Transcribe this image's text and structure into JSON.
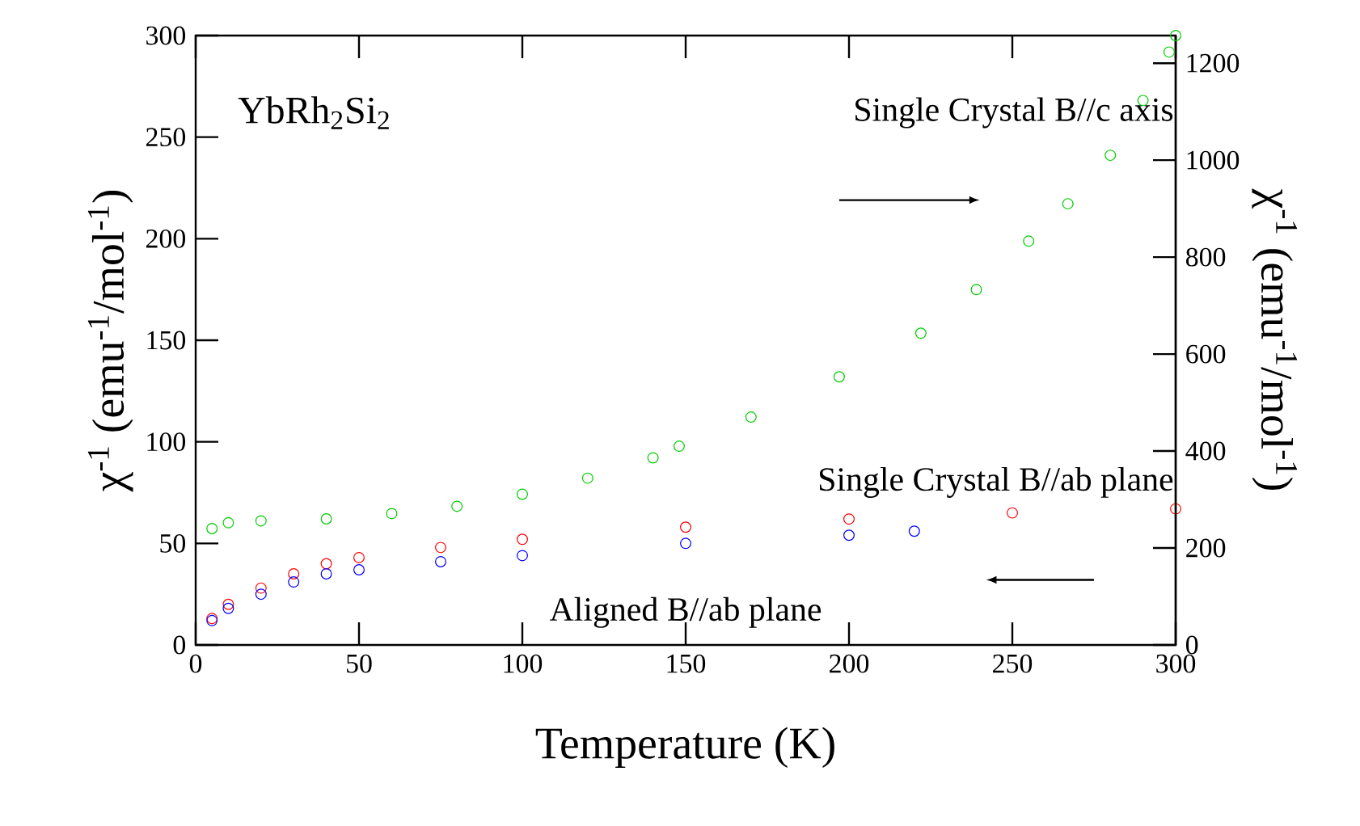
{
  "chart_data": {
    "type": "scatter",
    "marker": "circle",
    "xlabel": "Temperature (K)",
    "ylabel": "χ$^{-1}$ (emu$^{-1}$/mol$^{-1}$)",
    "y2label": "χ$^{-1}$ (emu$^{-1}$/mol$^{-1}$)",
    "xlim": [
      0,
      300
    ],
    "xticks": [
      0,
      50,
      100,
      150,
      200,
      250,
      300
    ],
    "ylim": [
      0,
      300
    ],
    "yticks": [
      0,
      50,
      100,
      150,
      200,
      250,
      300
    ],
    "y2lim": [
      0,
      1257
    ],
    "y2ticks": [
      0,
      200,
      400,
      600,
      800,
      1000,
      1200
    ],
    "annotations": [
      "YbRh$_{2}$Si$_{2}$"
    ],
    "series": [
      {
        "name": "Single Crystal  B//c axis",
        "color": "#00cc00",
        "axis": "y2",
        "x": [
          5,
          10,
          20,
          40,
          60,
          80,
          100,
          120,
          140,
          148,
          170,
          197,
          222,
          239,
          255,
          267,
          280,
          290,
          298,
          300
        ],
        "values": [
          240,
          252,
          256,
          260,
          271,
          286,
          311,
          344,
          386,
          410,
          470,
          553,
          643,
          733,
          833,
          910,
          1010,
          1123,
          1223,
          1257
        ]
      },
      {
        "name": "Single Crystal B//ab plane",
        "color": "#ff0000",
        "x": [
          5,
          10,
          20,
          30,
          40,
          50,
          75,
          100,
          150,
          200,
          250,
          300
        ],
        "values": [
          13,
          20,
          28,
          35,
          40,
          43,
          48,
          52,
          58,
          62,
          65,
          67
        ]
      },
      {
        "name": "Aligned B//ab plane",
        "color": "#0000ff",
        "x": [
          5,
          10,
          20,
          30,
          40,
          50,
          75,
          100,
          150,
          200,
          220
        ],
        "values": [
          12,
          18,
          25,
          31,
          35,
          37,
          41,
          44,
          50,
          54,
          56
        ]
      }
    ]
  }
}
